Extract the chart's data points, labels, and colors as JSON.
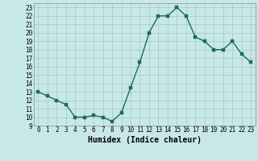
{
  "x": [
    0,
    1,
    2,
    3,
    4,
    5,
    6,
    7,
    8,
    9,
    10,
    11,
    12,
    13,
    14,
    15,
    16,
    17,
    18,
    19,
    20,
    21,
    22,
    23
  ],
  "y": [
    13,
    12.5,
    12,
    11.5,
    10,
    10,
    10.2,
    10,
    9.5,
    10.5,
    13.5,
    16.5,
    20,
    22,
    22,
    23,
    22,
    19.5,
    19,
    18,
    18,
    19,
    17.5,
    16.5
  ],
  "line_color": "#1a6b5a",
  "marker_color": "#1a6b5a",
  "bg_color": "#c8e8e8",
  "grid_color": "#a0c8c8",
  "xlabel": "Humidex (Indice chaleur)",
  "xlim": [
    -0.5,
    23.5
  ],
  "ylim": [
    9,
    23.5
  ],
  "yticks": [
    9,
    10,
    11,
    12,
    13,
    14,
    15,
    16,
    17,
    18,
    19,
    20,
    21,
    22,
    23
  ],
  "xticks": [
    0,
    1,
    2,
    3,
    4,
    5,
    6,
    7,
    8,
    9,
    10,
    11,
    12,
    13,
    14,
    15,
    16,
    17,
    18,
    19,
    20,
    21,
    22,
    23
  ],
  "tick_fontsize": 5.5,
  "xlabel_fontsize": 7,
  "marker_size": 2.5,
  "line_width": 1.0
}
